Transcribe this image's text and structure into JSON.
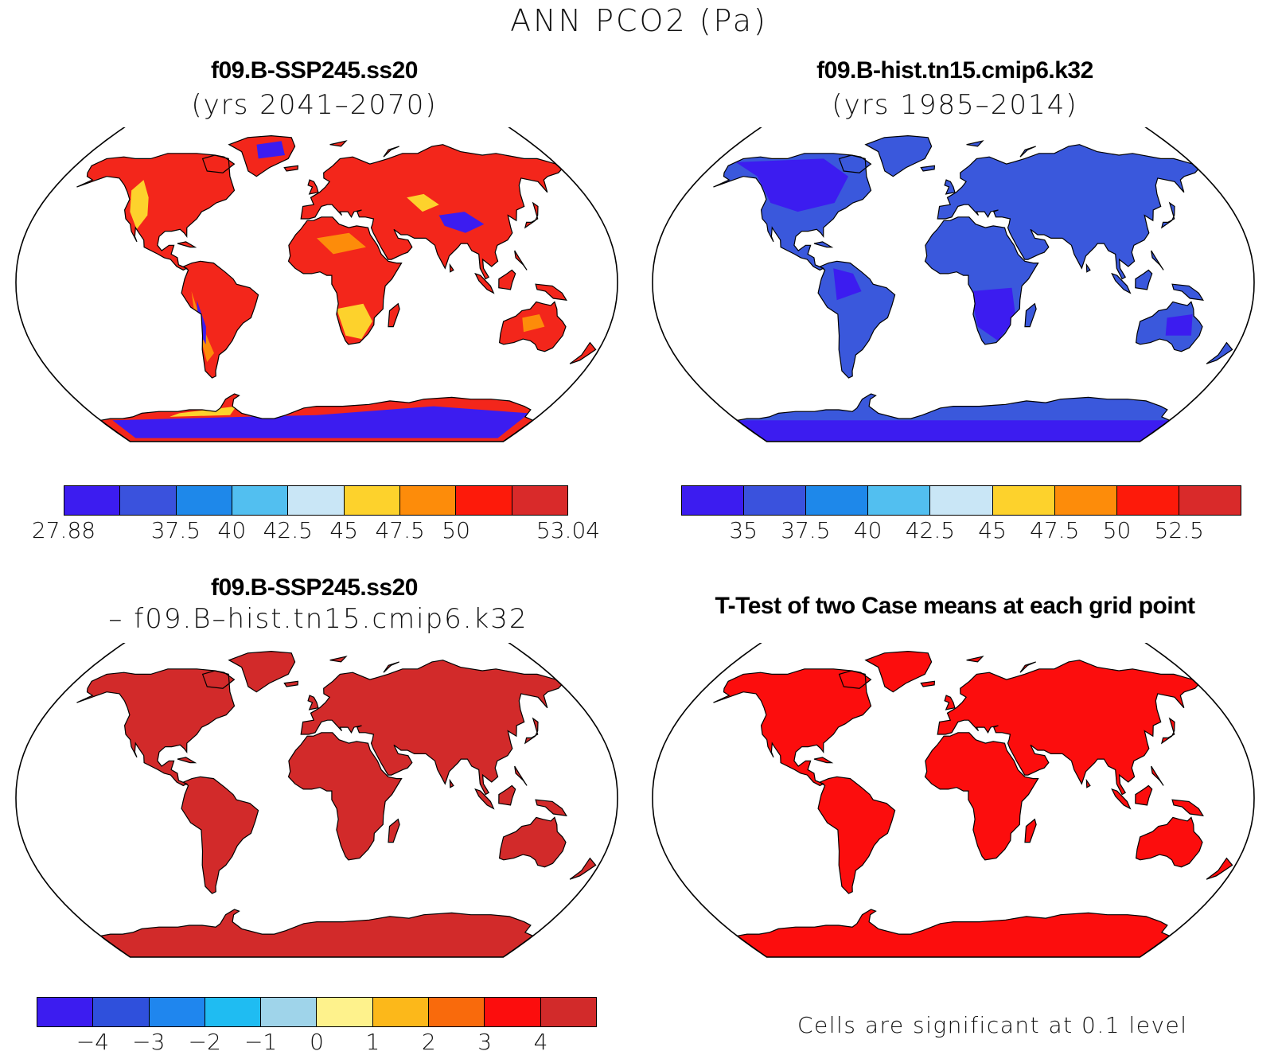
{
  "title": "ANN PCO2 (Pa)",
  "panels": [
    {
      "id": "case1",
      "title": "f09.B-SSP245.ss20",
      "subtitle": "(yrs 2041–2070)",
      "fill_style": "case1"
    },
    {
      "id": "case2",
      "title": "f09.B-hist.tn15.cmip6.k32",
      "subtitle": "(yrs 1985–2014)",
      "fill_style": "case2"
    },
    {
      "id": "diff",
      "title": "f09.B-SSP245.ss20",
      "subtitle": "– f09.B–hist.tn15.cmip6.k32",
      "fill_style": "diff"
    },
    {
      "id": "ttest",
      "title": "T-Test of two Case means at each grid point",
      "subtitle": "",
      "fill_style": "ttest"
    }
  ],
  "colorbars": {
    "case1": {
      "colors": [
        "#3c1cf0",
        "#3a52dd",
        "#1e88ea",
        "#52bff0",
        "#c9e6f6",
        "#fdd22c",
        "#fd8c0a",
        "#fd1a0a",
        "#d92a2a"
      ],
      "tick_labels": [
        "27.88",
        "37.5",
        "40",
        "42.5",
        "45",
        "47.5",
        "50",
        "53.04"
      ]
    },
    "case2": {
      "colors": [
        "#3c1cf0",
        "#3a52dd",
        "#1e88ea",
        "#52bff0",
        "#c9e6f6",
        "#fdd22c",
        "#fd8c0a",
        "#fd1a0a",
        "#d92a2a"
      ],
      "tick_labels": [
        "35",
        "37.5",
        "40",
        "42.5",
        "45",
        "47.5",
        "50",
        "52.5"
      ]
    },
    "diff": {
      "colors": [
        "#3c1cf0",
        "#2f50dc",
        "#1f86ee",
        "#1fbcf2",
        "#9fd4ea",
        "#fef28c",
        "#fcb81a",
        "#f96a0c",
        "#fc0d0d",
        "#d22a2a"
      ],
      "tick_labels": [
        "−4",
        "−3",
        "−2",
        "−1",
        "0",
        "1",
        "2",
        "3",
        "4"
      ]
    }
  },
  "ttest_note": "Cells are significant at 0.1 level",
  "colors": {
    "case1_warm": "#f3261b",
    "case1_mid": "#fd8c0a",
    "case1_yellow": "#fdd22c",
    "case1_blue": "#3c1cf0",
    "case2_land": "#3a58dc",
    "case2_dark": "#3c1cf0",
    "diff_land": "#d22a2a",
    "ttest_land": "#fc0d0d"
  }
}
